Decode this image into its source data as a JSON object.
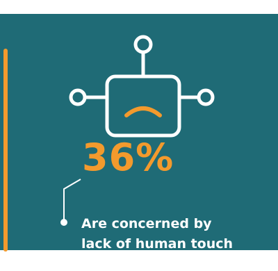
{
  "stat": {
    "value": "36%",
    "caption_line1": "Are concerned by",
    "caption_line2": "lack of human touch"
  },
  "icon": {
    "name": "sad-robot-icon"
  },
  "colors": {
    "background": "#1f6b76",
    "accent": "#f39a2d",
    "text": "#ffffff"
  }
}
